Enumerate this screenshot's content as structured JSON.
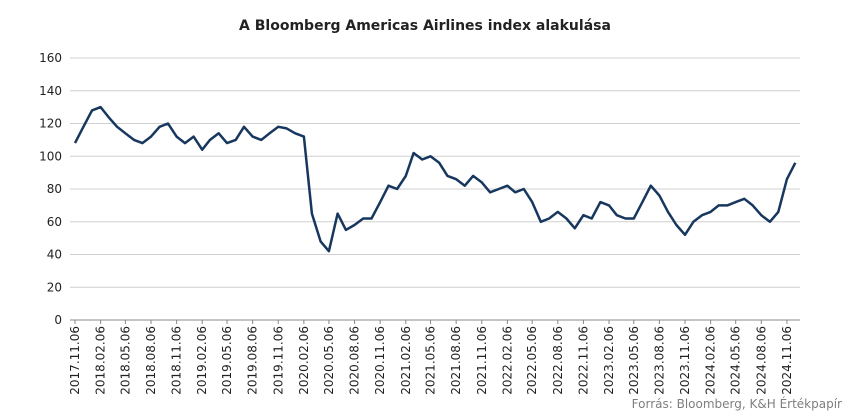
{
  "chart_data": {
    "type": "line",
    "title": "A Bloomberg Americas Airlines index  alakulása",
    "source": "Forrás: Bloomberg,  K&H Értékpapír",
    "x": [
      "2017.11.06",
      "2017.12.06",
      "2018.01.06",
      "2018.02.06",
      "2018.03.06",
      "2018.04.06",
      "2018.05.06",
      "2018.06.06",
      "2018.07.06",
      "2018.08.06",
      "2018.09.06",
      "2018.10.06",
      "2018.11.06",
      "2018.12.06",
      "2019.01.06",
      "2019.02.06",
      "2019.03.06",
      "2019.04.06",
      "2019.05.06",
      "2019.06.06",
      "2019.07.06",
      "2019.08.06",
      "2019.09.06",
      "2019.10.06",
      "2019.11.06",
      "2019.12.06",
      "2020.01.06",
      "2020.02.06",
      "2020.03.06",
      "2020.04.06",
      "2020.05.06",
      "2020.06.06",
      "2020.07.06",
      "2020.08.06",
      "2020.09.06",
      "2020.10.06",
      "2020.11.06",
      "2020.12.06",
      "2021.01.06",
      "2021.02.06",
      "2021.03.06",
      "2021.04.06",
      "2021.05.06",
      "2021.06.06",
      "2021.07.06",
      "2021.08.06",
      "2021.09.06",
      "2021.10.06",
      "2021.11.06",
      "2021.12.06",
      "2022.01.06",
      "2022.02.06",
      "2022.03.06",
      "2022.04.06",
      "2022.05.06",
      "2022.06.06",
      "2022.07.06",
      "2022.08.06",
      "2022.09.06",
      "2022.10.06",
      "2022.11.06",
      "2022.12.06",
      "2023.01.06",
      "2023.02.06",
      "2023.03.06",
      "2023.04.06",
      "2023.05.06",
      "2023.06.06",
      "2023.07.06",
      "2023.08.06",
      "2023.09.06",
      "2023.10.06",
      "2023.11.06",
      "2023.12.06",
      "2024.01.06",
      "2024.02.06",
      "2024.03.06",
      "2024.04.06",
      "2024.05.06",
      "2024.06.06",
      "2024.07.06",
      "2024.08.06",
      "2024.09.06",
      "2024.10.06",
      "2024.11.06",
      "2024.12.06"
    ],
    "series": [
      {
        "color": "#17375e",
        "values": [
          108,
          118,
          128,
          130,
          124,
          118,
          114,
          110,
          108,
          112,
          118,
          120,
          112,
          108,
          112,
          104,
          110,
          114,
          108,
          110,
          118,
          112,
          110,
          114,
          118,
          117,
          114,
          112,
          65,
          48,
          42,
          65,
          55,
          58,
          62,
          62,
          72,
          82,
          80,
          88,
          102,
          98,
          100,
          96,
          88,
          86,
          82,
          88,
          84,
          78,
          80,
          82,
          78,
          80,
          72,
          60,
          62,
          66,
          62,
          56,
          64,
          62,
          72,
          70,
          64,
          62,
          62,
          72,
          82,
          76,
          66,
          58,
          52,
          60,
          64,
          66,
          70,
          70,
          72,
          74,
          70,
          64,
          60,
          66,
          86,
          96
        ]
      }
    ],
    "xlim": [
      "2017.10.19",
      "2024.12.23"
    ],
    "xticks": [
      "2017.11.06",
      "2018.02.06",
      "2018.05.06",
      "2018.08.06",
      "2018.11.06",
      "2019.02.06",
      "2019.05.06",
      "2019.08.06",
      "2019.11.06",
      "2020.02.06",
      "2020.05.06",
      "2020.08.06",
      "2020.11.06",
      "2021.02.06",
      "2021.05.06",
      "2021.08.06",
      "2021.11.06",
      "2022.02.06",
      "2022.05.06",
      "2022.08.06",
      "2022.11.06",
      "2023.02.06",
      "2023.05.06",
      "2023.08.06",
      "2023.11.06",
      "2024.02.06",
      "2024.05.06",
      "2024.08.06",
      "2024.11.06"
    ],
    "ylim": [
      0,
      160
    ],
    "yticks": [
      0,
      20,
      40,
      60,
      80,
      100,
      120,
      140,
      160
    ],
    "grid": true
  }
}
